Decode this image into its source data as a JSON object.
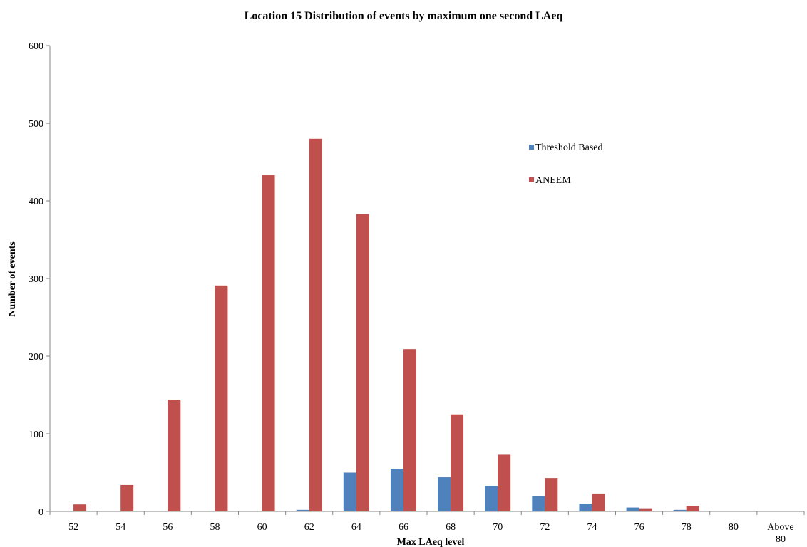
{
  "chart_data": {
    "type": "bar",
    "title": "Location 15 Distribution of events by maximum one second LAeq",
    "xlabel": "Max LAeq level",
    "ylabel": "Number of events",
    "categories": [
      "52",
      "54",
      "56",
      "58",
      "60",
      "62",
      "64",
      "66",
      "68",
      "70",
      "72",
      "74",
      "76",
      "78",
      "80",
      "Above 80"
    ],
    "series": [
      {
        "name": "Threshold Based",
        "color": "#4F81BD",
        "values": [
          0,
          0,
          0,
          0,
          0,
          2,
          50,
          55,
          44,
          33,
          20,
          10,
          5,
          2,
          0,
          0
        ]
      },
      {
        "name": "ANEEM",
        "color": "#C0504D",
        "values": [
          9,
          34,
          144,
          291,
          433,
          480,
          383,
          209,
          125,
          73,
          43,
          23,
          4,
          7,
          0,
          0
        ]
      }
    ],
    "ylim": [
      0,
      600
    ],
    "yticks": [
      0,
      100,
      200,
      300,
      400,
      500,
      600
    ],
    "grid": false,
    "legend_position": "upper-right"
  }
}
